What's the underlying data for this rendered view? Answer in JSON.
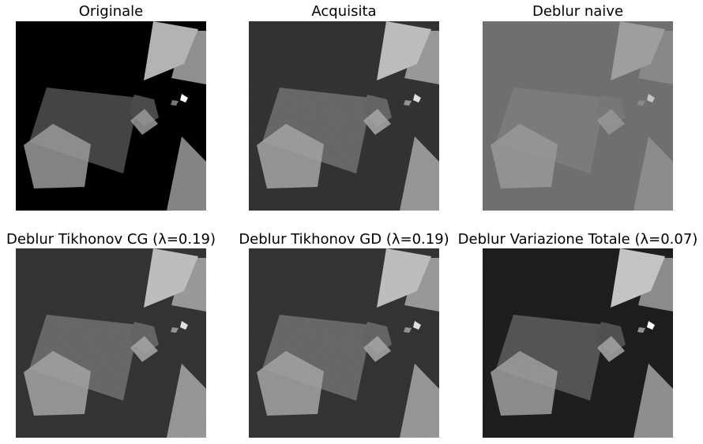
{
  "figure": {
    "panels": [
      {
        "title": "Originale",
        "bg": "#000000",
        "shapes": [
          "#444444",
          "#9a9a9a",
          "#b3b3b3",
          "#8f8f8f",
          "#4a4a4a",
          "#999999",
          "#dddddd",
          "#777777",
          "#ffffff",
          "#848484"
        ],
        "noise": 0
      },
      {
        "title": "Acquisita",
        "bg": "#2e2e2e",
        "shapes": [
          "#5f5f5f",
          "#9a9a9a",
          "#b7b7b7",
          "#8f8f8f",
          "#5c5c5c",
          "#9d9d9d",
          "#c9c9c9",
          "#8a8a8a",
          "#dddddd",
          "#8c8c8c"
        ],
        "noise": 0.35
      },
      {
        "title": "Deblur naive",
        "bg": "#6f6f6f",
        "shapes": [
          "#7b7b7b",
          "#999999",
          "#9e9e9e",
          "#888888",
          "#777777",
          "#979797",
          "#a9a9a9",
          "#8a8a8a",
          "#c3c3c3",
          "#8c8c8c"
        ],
        "noise": 0
      },
      {
        "title": "Deblur Tikhonov CG (λ=0.19)",
        "bg": "#2f2f2f",
        "shapes": [
          "#5f5f5f",
          "#9a9a9a",
          "#b7b7b7",
          "#8f8f8f",
          "#5c5c5c",
          "#9d9d9d",
          "#c9c9c9",
          "#8a8a8a",
          "#dddddd",
          "#8c8c8c"
        ],
        "noise": 0.35
      },
      {
        "title": "Deblur Tikhonov GD (λ=0.19)",
        "bg": "#2f2f2f",
        "shapes": [
          "#5f5f5f",
          "#9a9a9a",
          "#b7b7b7",
          "#8f8f8f",
          "#5c5c5c",
          "#9d9d9d",
          "#c9c9c9",
          "#8a8a8a",
          "#dddddd",
          "#8c8c8c"
        ],
        "noise": 0.35
      },
      {
        "title": "Deblur Variazione Totale (λ=0.07)",
        "bg": "#1c1c1c",
        "shapes": [
          "#515151",
          "#9a9a9a",
          "#c2c2c2",
          "#878787",
          "#4d4d4d",
          "#a2a2a2",
          "#dcdcdc",
          "#8e8e8e",
          "#ffffff",
          "#8a8a8a"
        ],
        "noise": 0.15
      }
    ]
  }
}
